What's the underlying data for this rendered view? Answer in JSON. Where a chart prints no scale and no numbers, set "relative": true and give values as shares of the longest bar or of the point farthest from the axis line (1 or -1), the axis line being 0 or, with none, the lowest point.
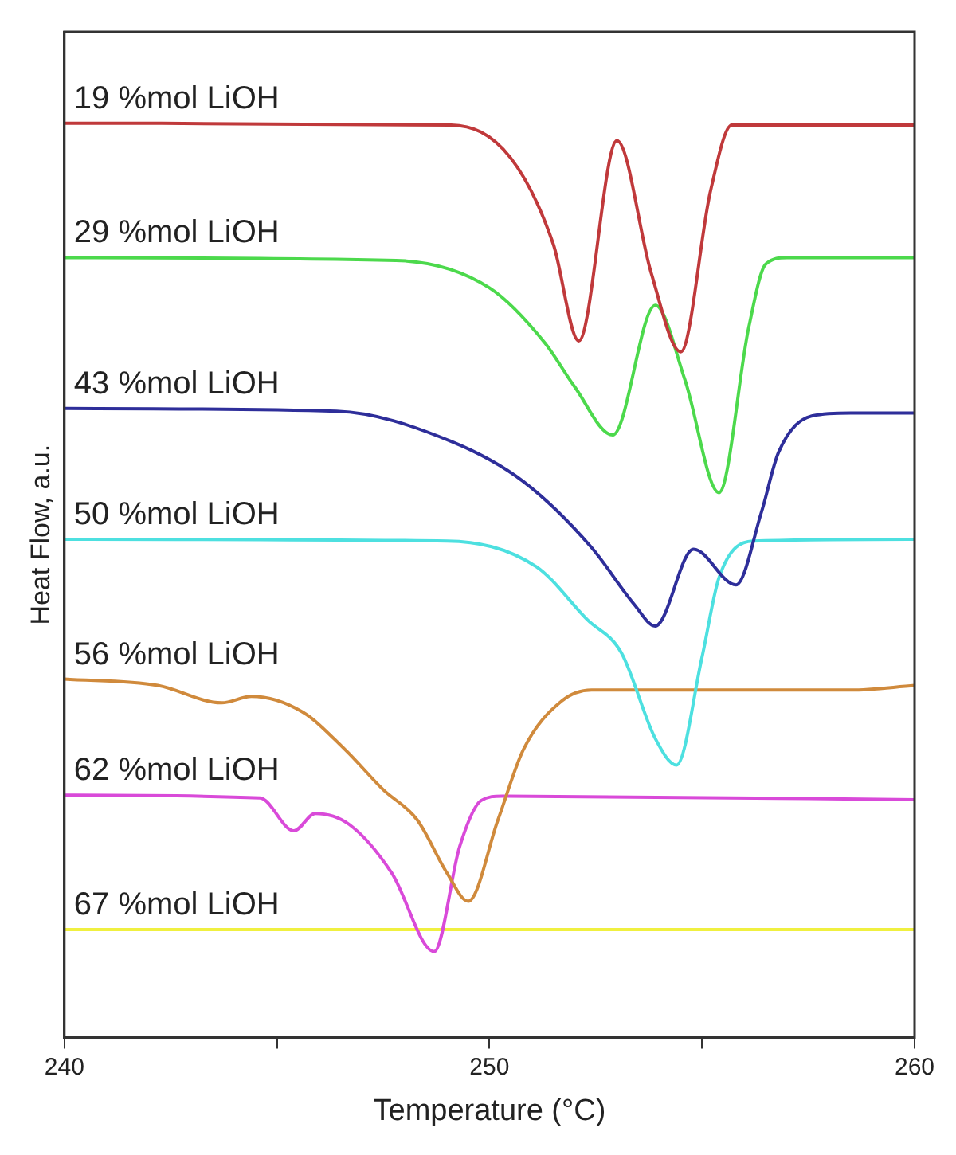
{
  "chart_data": {
    "type": "line",
    "relative": true,
    "xlabel": "Temperature (°C)",
    "ylabel": "Heat Flow, a.u.",
    "xlim": [
      240,
      260
    ],
    "xticks": [
      240,
      {
        "value": 245,
        "label": null
      },
      250,
      {
        "value": 255,
        "label": null
      },
      260
    ],
    "grid": false,
    "legend": false,
    "marker": "none",
    "line_style": "solid",
    "series": [
      {
        "name": "19 %mol LiOH",
        "color": "#c0393b",
        "x": [
          240,
          249.1,
          250.5,
          251.5,
          252.1,
          253.0,
          253.8,
          254.5,
          255.2,
          255.7,
          260
        ],
        "values": [
          1.0,
          0.998,
          0.962,
          0.868,
          0.762,
          0.981,
          0.837,
          0.75,
          0.926,
          0.998,
          0.998
        ]
      },
      {
        "name": "29 %mol LiOH",
        "color": "#4cd94c",
        "x": [
          240,
          247.8,
          250.0,
          251.3,
          252.0,
          252.9,
          253.9,
          254.6,
          255.4,
          256.1,
          256.5,
          257.0,
          260
        ],
        "values": [
          0.853,
          0.85,
          0.82,
          0.76,
          0.712,
          0.659,
          0.801,
          0.719,
          0.596,
          0.777,
          0.846,
          0.853,
          0.853
        ]
      },
      {
        "name": "43 %mol LiOH",
        "color": "#2e2e9a",
        "x": [
          240,
          246.4,
          249.1,
          250.8,
          252.4,
          253.4,
          253.9,
          254.8,
          255.8,
          256.4,
          256.8,
          257.6,
          258.5,
          260
        ],
        "values": [
          0.688,
          0.685,
          0.652,
          0.608,
          0.536,
          0.474,
          0.45,
          0.534,
          0.495,
          0.575,
          0.64,
          0.68,
          0.683,
          0.683
        ]
      },
      {
        "name": "50 %mol LiOH",
        "color": "#4de0e0",
        "x": [
          240,
          249.0,
          251.1,
          252.3,
          253.1,
          253.9,
          254.4,
          255.0,
          255.4,
          256.2,
          260
        ],
        "values": [
          0.545,
          0.543,
          0.515,
          0.457,
          0.421,
          0.327,
          0.298,
          0.416,
          0.503,
          0.543,
          0.545
        ]
      },
      {
        "name": "56 %mol LiOH",
        "color": "#d08a3c",
        "x": [
          240,
          242.2,
          243.7,
          244.4,
          245.6,
          246.6,
          247.5,
          248.3,
          249.0,
          249.5,
          250.2,
          250.8,
          251.7,
          252.4,
          258.5,
          260
        ],
        "values": [
          0.392,
          0.385,
          0.366,
          0.373,
          0.356,
          0.315,
          0.271,
          0.238,
          0.18,
          0.149,
          0.238,
          0.315,
          0.368,
          0.38,
          0.38,
          0.385
        ]
      },
      {
        "name": "62 %mol LiOH",
        "color": "#d94ad9",
        "x": [
          240,
          244.6,
          245.4,
          245.9,
          246.7,
          247.7,
          248.7,
          249.3,
          249.8,
          250.3,
          260
        ],
        "values": [
          0.265,
          0.262,
          0.226,
          0.245,
          0.233,
          0.18,
          0.094,
          0.209,
          0.259,
          0.264,
          0.26
        ]
      },
      {
        "name": "67 %mol LiOH",
        "color": "#f0f040",
        "x": [
          240,
          260
        ],
        "values": [
          0.118,
          0.118
        ]
      }
    ]
  }
}
